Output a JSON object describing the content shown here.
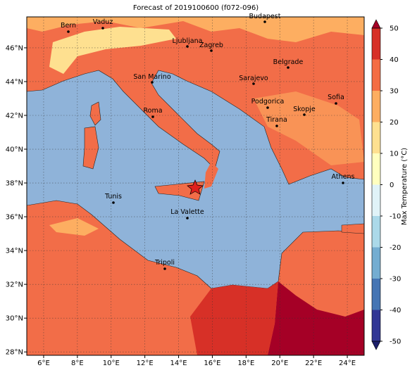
{
  "title": "Forecast of 2019100600 (f072-096)",
  "map": {
    "lon_lim": [
      5,
      25
    ],
    "lat_lim": [
      27.8,
      47.83
    ],
    "lon_ticks": [
      {
        "value": 6,
        "label": "6°E"
      },
      {
        "value": 8,
        "label": "8°E"
      },
      {
        "value": 10,
        "label": "10°E"
      },
      {
        "value": 12,
        "label": "12°E"
      },
      {
        "value": 14,
        "label": "14°E"
      },
      {
        "value": 16,
        "label": "16°E"
      },
      {
        "value": 18,
        "label": "18°E"
      },
      {
        "value": 20,
        "label": "20°E"
      },
      {
        "value": 22,
        "label": "22°E"
      },
      {
        "value": 24,
        "label": "24°E"
      }
    ],
    "lat_ticks": [
      {
        "value": 28,
        "label": "28°N"
      },
      {
        "value": 30,
        "label": "30°N"
      },
      {
        "value": 32,
        "label": "32°N"
      },
      {
        "value": 34,
        "label": "34°N"
      },
      {
        "value": 36,
        "label": "36°N"
      },
      {
        "value": 38,
        "label": "38°N"
      },
      {
        "value": 40,
        "label": "40°N"
      },
      {
        "value": 42,
        "label": "42°N"
      },
      {
        "value": 44,
        "label": "44°N"
      },
      {
        "value": 46,
        "label": "46°N"
      }
    ]
  },
  "cities": [
    "Bern",
    "Vaduz",
    "Budapest",
    "Ljubljana",
    "Zagreb",
    "Belgrade",
    "Sarajevo",
    "San Marino",
    "Sofia",
    "Podgorica",
    "Skopje",
    "Roma",
    "Tirana",
    "Athens",
    "Tunis",
    "La Valette",
    "Tripoli"
  ],
  "colorbar": {
    "label": "Max Temperature (°C)",
    "lim": [
      -50,
      50
    ],
    "ticks": [
      -50,
      -40,
      -30,
      -20,
      -10,
      0,
      10,
      20,
      30,
      40,
      50
    ],
    "colors": [
      "#1c1f6b",
      "#313695",
      "#4575b4",
      "#74add1",
      "#abd9e9",
      "#e0f3f8",
      "#ffffbf",
      "#fee090",
      "#fdae61",
      "#f46d43",
      "#d73027",
      "#a50026"
    ]
  }
}
